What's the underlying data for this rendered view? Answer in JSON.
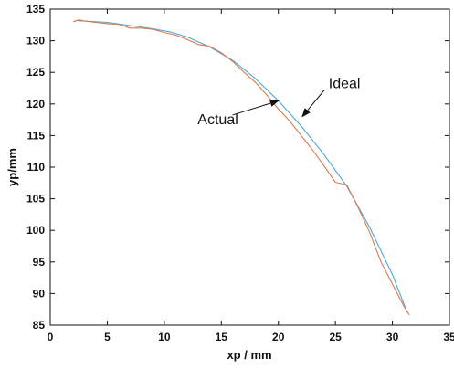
{
  "chart_data": {
    "type": "line",
    "title": "",
    "xlabel": "xp / mm",
    "ylabel": "yp/mm",
    "xlim": [
      0,
      35
    ],
    "ylim": [
      85,
      135
    ],
    "xticks": [
      0,
      5,
      10,
      15,
      20,
      25,
      30,
      35
    ],
    "yticks": [
      85,
      90,
      95,
      100,
      105,
      110,
      115,
      120,
      125,
      130,
      135
    ],
    "grid": false,
    "series": [
      {
        "name": "Ideal",
        "color": "#4aa8d8",
        "x": [
          2.2,
          3,
          5,
          7,
          9,
          10.5,
          12,
          14,
          16,
          18,
          20,
          22,
          24,
          26,
          28,
          30,
          31.3
        ],
        "y": [
          133.2,
          133.1,
          132.9,
          132.4,
          131.9,
          131.4,
          130.6,
          129.0,
          126.9,
          124.0,
          120.5,
          116.5,
          112.0,
          107.0,
          100.5,
          93.0,
          87.0
        ]
      },
      {
        "name": "Actual",
        "color": "#e0784a",
        "x": [
          2.0,
          2.5,
          3,
          4,
          5,
          6,
          7,
          8,
          9,
          10,
          11,
          12,
          13,
          14,
          15,
          16,
          17,
          18,
          19,
          20,
          21,
          22,
          23,
          24,
          25,
          26,
          27,
          28,
          29,
          30,
          31,
          31.5
        ],
        "y": [
          133.0,
          133.3,
          133.1,
          132.9,
          132.7,
          132.6,
          132.0,
          132.0,
          131.8,
          131.3,
          130.9,
          130.2,
          129.4,
          129.1,
          128.1,
          126.7,
          125.0,
          123.4,
          121.4,
          119.2,
          117.3,
          115.0,
          112.7,
          110.2,
          107.6,
          107.2,
          103.6,
          99.7,
          95.0,
          91.5,
          88.0,
          86.6
        ]
      }
    ],
    "annotations": [
      {
        "text": "Ideal",
        "x": 25.8,
        "y": 122.5,
        "arrow_to": [
          22.1,
          118.0
        ]
      },
      {
        "text": "Actual",
        "x": 14.7,
        "y": 116.8,
        "arrow_to": [
          20.0,
          120.5
        ]
      }
    ]
  }
}
